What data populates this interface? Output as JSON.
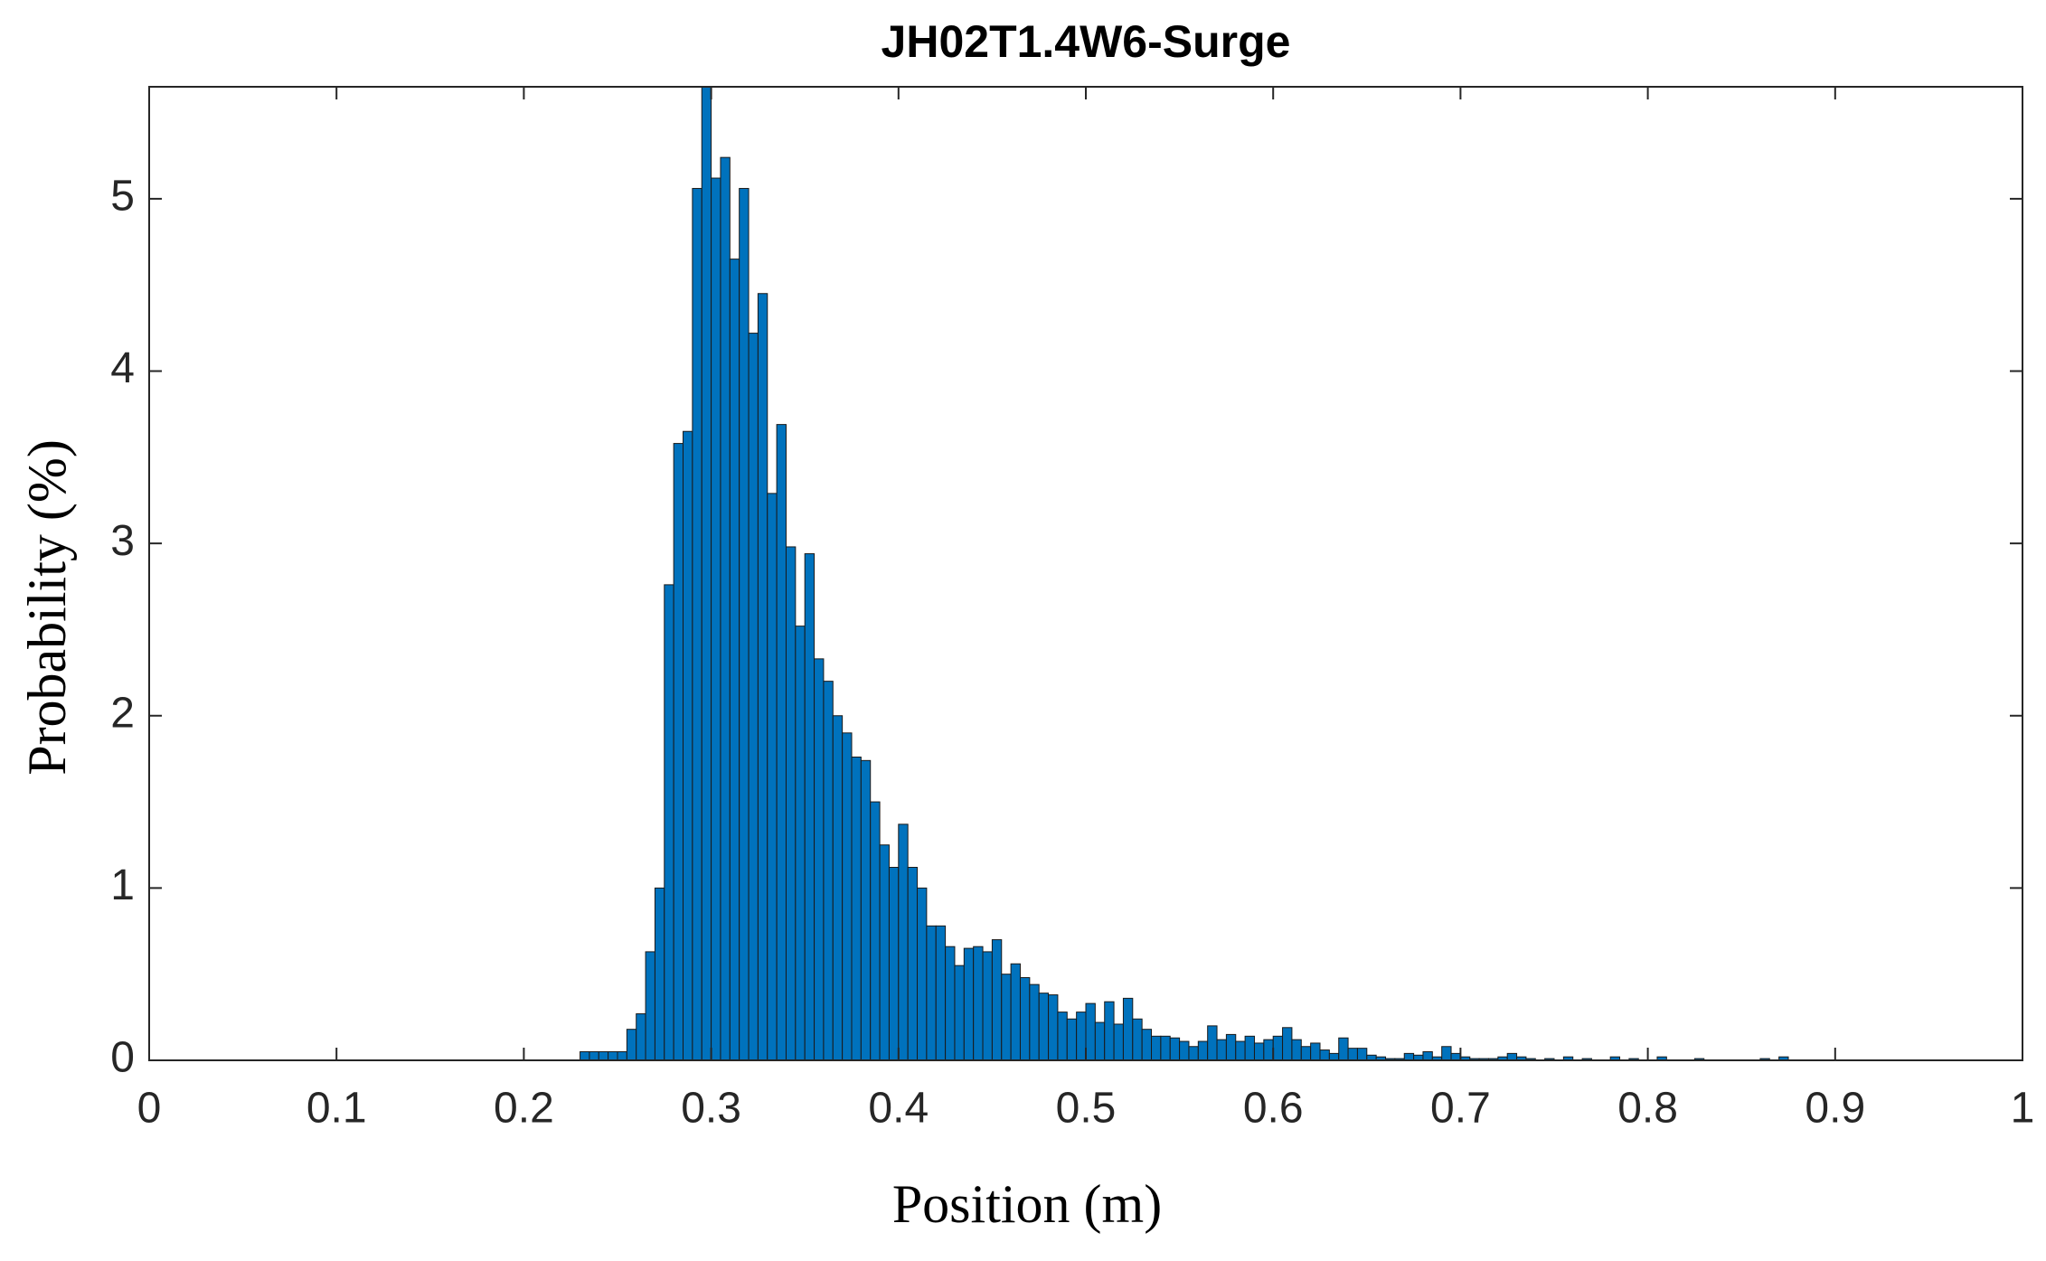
{
  "chart_data": {
    "type": "histogram",
    "title": "JH02T1.4W6-Surge",
    "xlabel": "Position (m)",
    "ylabel": "Probability (%)",
    "color": "#0072bd",
    "edgecolor": "#1a1a1a",
    "bins": [
      0.23,
      0.235,
      0.24,
      0.245,
      0.25,
      0.255,
      0.26,
      0.265,
      0.27,
      0.275,
      0.28,
      0.285,
      0.29,
      0.295,
      0.3,
      0.305,
      0.31,
      0.315,
      0.32,
      0.325,
      0.33,
      0.335,
      0.34,
      0.345,
      0.35,
      0.355,
      0.36,
      0.365,
      0.37,
      0.375,
      0.38,
      0.385,
      0.39,
      0.395,
      0.4,
      0.405,
      0.41,
      0.415,
      0.42,
      0.425,
      0.43,
      0.435,
      0.44,
      0.445,
      0.45,
      0.455,
      0.46,
      0.465,
      0.47,
      0.475,
      0.48,
      0.485,
      0.49,
      0.495,
      0.5,
      0.505,
      0.51,
      0.515,
      0.52,
      0.525,
      0.53,
      0.535,
      0.54,
      0.545,
      0.55,
      0.555,
      0.56,
      0.565,
      0.57,
      0.575,
      0.58,
      0.585,
      0.59,
      0.595,
      0.6,
      0.605,
      0.61,
      0.615,
      0.62,
      0.625,
      0.63,
      0.635,
      0.64,
      0.645,
      0.65,
      0.655,
      0.66,
      0.665,
      0.67,
      0.675,
      0.68,
      0.685,
      0.69,
      0.695,
      0.7,
      0.705,
      0.71,
      0.715,
      0.72,
      0.725,
      0.73,
      0.735,
      0.74,
      0.745,
      0.75,
      0.755,
      0.76,
      0.765,
      0.77,
      0.775,
      0.78,
      0.785,
      0.79,
      0.795,
      0.8,
      0.805,
      0.81,
      0.815,
      0.82,
      0.825,
      0.83,
      0.835,
      0.84,
      0.845,
      0.85,
      0.855,
      0.86,
      0.865,
      0.87,
      0.875,
      0.88
    ],
    "values": [
      0.05,
      0.05,
      0.05,
      0.05,
      0.05,
      0.18,
      0.27,
      0.63,
      1.0,
      2.76,
      3.58,
      3.65,
      5.06,
      5.65,
      5.12,
      5.24,
      4.65,
      5.06,
      4.22,
      4.45,
      3.29,
      3.69,
      2.98,
      2.52,
      2.94,
      2.33,
      2.2,
      2.0,
      1.9,
      1.76,
      1.74,
      1.5,
      1.25,
      1.12,
      1.37,
      1.12,
      1.0,
      0.78,
      0.78,
      0.66,
      0.55,
      0.65,
      0.66,
      0.63,
      0.7,
      0.5,
      0.56,
      0.48,
      0.44,
      0.39,
      0.38,
      0.28,
      0.24,
      0.28,
      0.33,
      0.22,
      0.34,
      0.21,
      0.36,
      0.24,
      0.18,
      0.14,
      0.14,
      0.13,
      0.11,
      0.08,
      0.11,
      0.2,
      0.12,
      0.15,
      0.11,
      0.14,
      0.1,
      0.12,
      0.14,
      0.19,
      0.12,
      0.08,
      0.1,
      0.06,
      0.04,
      0.13,
      0.07,
      0.07,
      0.03,
      0.02,
      0.01,
      0.01,
      0.04,
      0.03,
      0.05,
      0.02,
      0.08,
      0.04,
      0.02,
      0.01,
      0.01,
      0.01,
      0.02,
      0.04,
      0.02,
      0.01,
      0,
      0.01,
      0,
      0.02,
      0,
      0.01,
      0,
      0,
      0.02,
      0,
      0.01,
      0,
      0,
      0.02,
      0,
      0,
      0,
      0.01,
      0,
      0,
      0,
      0,
      0,
      0,
      0.01,
      0,
      0.02,
      0
    ],
    "xlim": [
      0,
      1
    ],
    "xticks": [
      0,
      0.1,
      0.2,
      0.3,
      0.4,
      0.5,
      0.6,
      0.7,
      0.8,
      0.9,
      1
    ],
    "ylim": [
      0,
      5.65
    ],
    "yticks": [
      0,
      1,
      2,
      3,
      4,
      5
    ],
    "grid": false
  }
}
